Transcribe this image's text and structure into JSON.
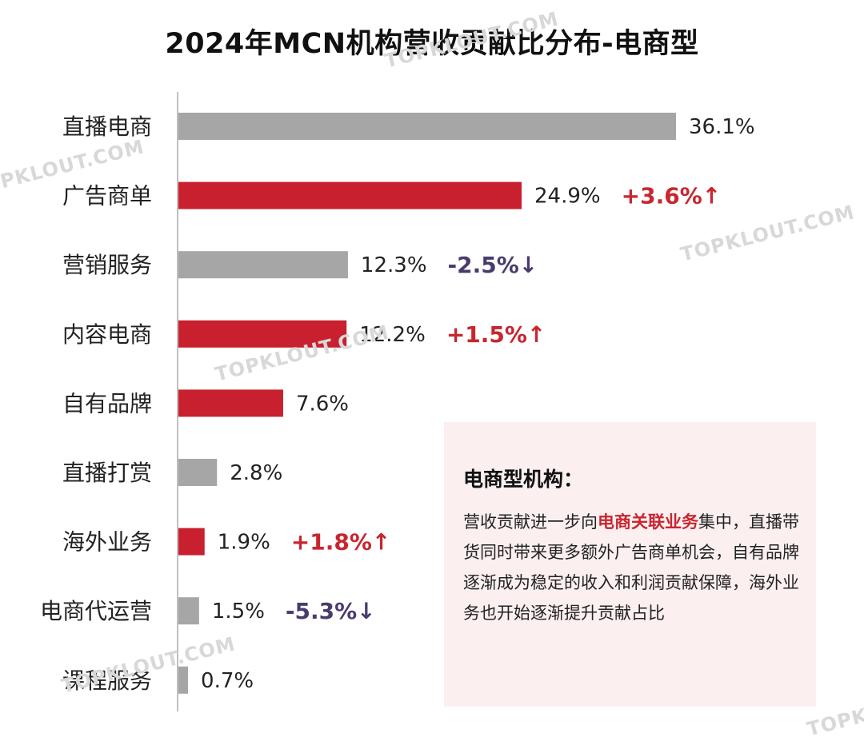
{
  "chart_data": {
    "type": "bar",
    "orientation": "horizontal",
    "title": "2024年MCN机构营收贡献比分布-电商型",
    "unit": "%",
    "categories": [
      "直播电商",
      "广告商单",
      "营销服务",
      "内容电商",
      "自有品牌",
      "直播打赏",
      "海外业务",
      "电商代运营",
      "课程服务"
    ],
    "values": [
      36.1,
      24.9,
      12.3,
      12.2,
      7.6,
      2.8,
      1.9,
      1.5,
      0.7
    ],
    "value_labels": [
      "36.1%",
      "24.9%",
      "12.3%",
      "12.2%",
      "7.6%",
      "2.8%",
      "1.9%",
      "1.5%",
      "0.7%"
    ],
    "highlighted": [
      false,
      true,
      false,
      true,
      true,
      false,
      true,
      false,
      false
    ],
    "changes": [
      "",
      "+3.6%↑",
      "-2.5%↓",
      "+1.5%↑",
      "",
      "",
      "+1.8%↑",
      "-5.3%↓",
      ""
    ],
    "change_direction": [
      "",
      "up",
      "down",
      "up",
      "",
      "",
      "up",
      "down",
      ""
    ],
    "colors": {
      "highlight": "#c8202e",
      "normal": "#a6a6a6",
      "up": "#c8262f",
      "down": "#4a3b6e",
      "axis": "#bfbfbf"
    },
    "grid": false,
    "legend": "none"
  },
  "note": {
    "heading": "电商型机构：",
    "body_before": "营收贡献进一步向",
    "body_highlight": "电商关联业务",
    "body_after": "集中，直播带货同时带来更多额外广告商单机会，自有品牌逐渐成为稳定的收入和利润贡献保障，海外业务也开始逐渐提升贡献占比"
  },
  "watermark": {
    "text": "TOPKLOUT.COM"
  }
}
